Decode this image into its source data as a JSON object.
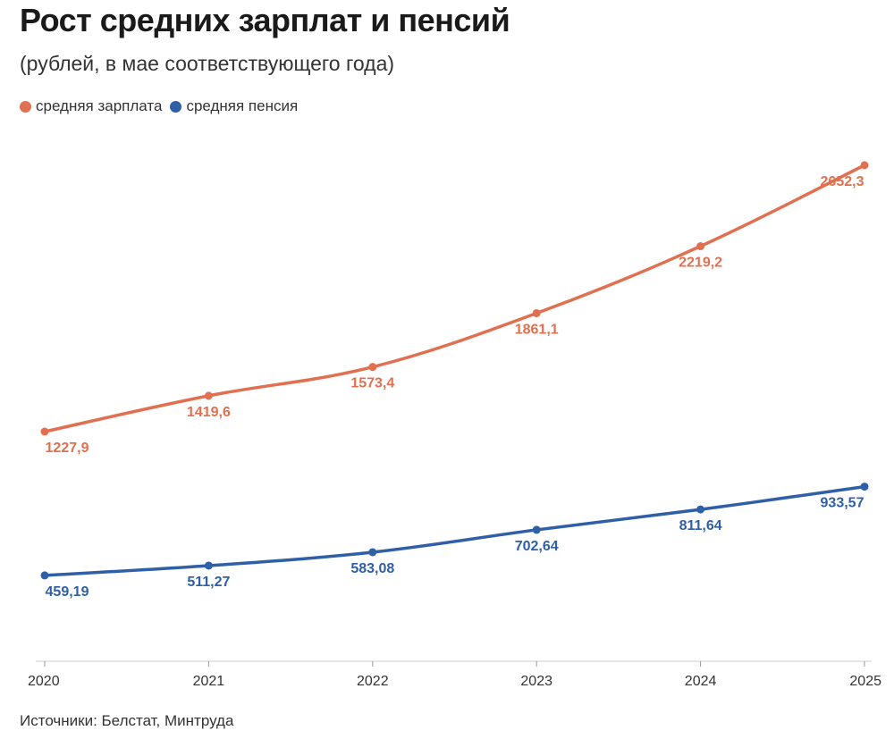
{
  "chart_data": {
    "type": "line",
    "title": "Рост средних зарплат и пенсий",
    "subtitle": "(рублей, в мае соответствующего года)",
    "categories": [
      "2020",
      "2021",
      "2022",
      "2023",
      "2024",
      "2025"
    ],
    "series": [
      {
        "name": "средняя зарплата",
        "color": "#E07050",
        "values": [
          1227.9,
          1419.6,
          1573.4,
          1861.1,
          2219.2,
          2652.3
        ],
        "labels": [
          "1227,9",
          "1419,6",
          "1573,4",
          "1861,1",
          "2219,2",
          "2652,3"
        ]
      },
      {
        "name": "средняя пенсия",
        "color": "#2F5FA7",
        "values": [
          459.19,
          511.27,
          583.08,
          702.64,
          811.64,
          933.57
        ],
        "labels": [
          "459,19",
          "511,27",
          "583,08",
          "702,64",
          "811,64",
          "933,57"
        ]
      }
    ],
    "xlabel": "",
    "ylabel": "",
    "ylim": [
      0,
      2800
    ],
    "grid": false,
    "legend": "top-left"
  },
  "source": "Источники: Белстат, Минтруда"
}
